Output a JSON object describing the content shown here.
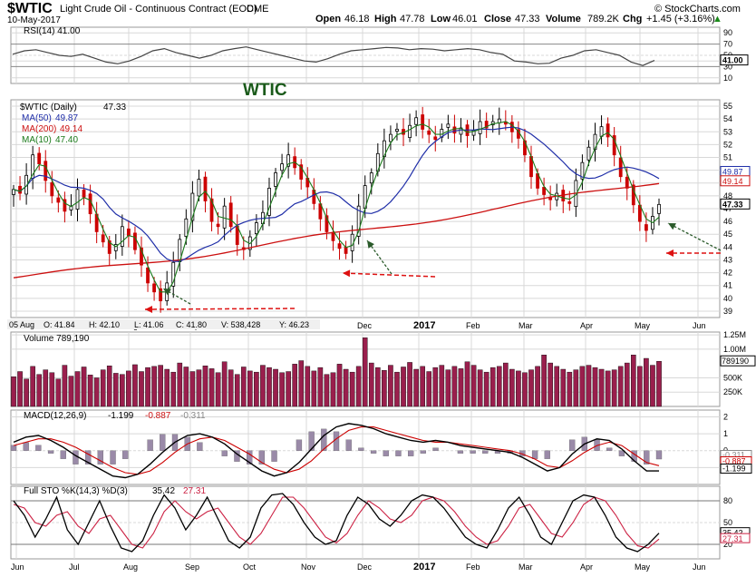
{
  "header": {
    "symbol": "$WTIC",
    "name": "Light Crude Oil - Continuous Contract (EOD)",
    "exchange": "CME",
    "site": "© StockCharts.com",
    "date": "10-May-2017",
    "open_label": "Open",
    "open": "46.18",
    "high_label": "High",
    "high": "47.78",
    "low_label": "Low",
    "low": "46.01",
    "close_label": "Close",
    "close": "47.33",
    "volume_label": "Volume",
    "volume": "789.2K",
    "chg_label": "Chg",
    "chg": "+1.45 (+3.16%)",
    "chg_arrow": "▲"
  },
  "annotation": "WTIC",
  "crosshair_readout": {
    "date": "05 Aug",
    "o": "O: 41.84",
    "h": "H: 42.10",
    "l": "L: 41.06",
    "c": "C: 41.80",
    "v": "V: 538,428",
    "y": "Y: 46.23"
  },
  "colors": {
    "up": "#000000",
    "down": "#cc0000",
    "ma50": "#1f2ea8",
    "ma200": "#cc1010",
    "ma10": "#1a7a1a",
    "vol": "#9a1f4d",
    "rsi": "#444444",
    "macd_hist": "#9a8aa8",
    "k_line": "#000000",
    "d_line": "#cc2244",
    "arrow_green": "#2a5a2a",
    "arrow_red": "#dd1111",
    "grid": "#d8d8d8",
    "price_box": "#ffffff"
  },
  "chart_data": [
    {
      "type": "line",
      "panel": "rsi",
      "legend": "RSI(14) 41.00",
      "series": [
        {
          "name": "RSI(14)",
          "values": [
            52,
            58,
            60,
            55,
            50,
            48,
            52,
            45,
            38,
            35,
            40,
            48,
            58,
            62,
            55,
            50,
            45,
            50,
            58,
            62,
            65,
            60,
            55,
            50,
            45,
            40,
            38,
            44,
            52,
            58,
            60,
            62,
            64,
            63,
            60,
            62,
            61,
            58,
            60,
            62,
            60,
            55,
            52,
            40,
            38,
            35,
            36,
            45,
            50,
            58,
            60,
            55,
            50,
            38,
            32,
            41
          ]
        }
      ],
      "yticks": [
        "90",
        "70",
        "50",
        "40",
        "30",
        "10"
      ],
      "ylim": [
        0,
        100
      ],
      "last_value": "41.00"
    },
    {
      "type": "candlestick",
      "panel": "price",
      "legend": [
        {
          "name": "$WTIC (Daily)",
          "value": "47.33"
        },
        {
          "name": "MA(50)",
          "value": "49.87"
        },
        {
          "name": "MA(200)",
          "value": "49.14"
        },
        {
          "name": "MA(10)",
          "value": "47.40"
        }
      ],
      "close": [
        48.5,
        48.2,
        49.6,
        51.2,
        50.5,
        49.2,
        48.0,
        47.5,
        46.8,
        47.2,
        48.5,
        47.9,
        46.6,
        45.2,
        44.4,
        43.5,
        44.2,
        45.6,
        44.9,
        43.8,
        42.6,
        41.2,
        40.5,
        39.8,
        41.2,
        42.8,
        44.6,
        46.2,
        48.2,
        49.3,
        47.6,
        46.0,
        45.6,
        47.2,
        45.6,
        44.2,
        43.8,
        44.8,
        45.9,
        46.7,
        48.6,
        49.8,
        50.5,
        51.2,
        50.2,
        49.3,
        48.7,
        47.4,
        46.2,
        45.2,
        44.5,
        43.9,
        43.5,
        45.0,
        47.2,
        48.8,
        49.8,
        51.3,
        52.3,
        52.8,
        53.2,
        52.8,
        53.5,
        54.1,
        53.2,
        52.8,
        52.4,
        53.2,
        53.6,
        52.9,
        53.3,
        52.7,
        53.1,
        53.8,
        53.3,
        53.8,
        54.0,
        53.6,
        53.0,
        52.5,
        51.2,
        49.5,
        48.6,
        48.1,
        47.7,
        48.2,
        47.6,
        47.4,
        49.2,
        50.6,
        51.8,
        52.8,
        53.4,
        52.6,
        51.2,
        49.5,
        48.6,
        47.3,
        46.0,
        45.3,
        46.4,
        47.33
      ],
      "ma50_end": 49.87,
      "ma200_end": 49.14,
      "ma10_end": 47.4,
      "yticks": [
        "55",
        "54",
        "53",
        "52",
        "51",
        "50",
        "49",
        "48",
        "47",
        "46",
        "45",
        "44",
        "43",
        "42",
        "41",
        "40",
        "39"
      ],
      "ylim": [
        38.5,
        55.5
      ],
      "last_labels": [
        "49.87",
        "49.14",
        "47.33"
      ]
    },
    {
      "type": "bar",
      "panel": "volume",
      "legend": "Volume 789,190",
      "values": [
        520,
        610,
        480,
        700,
        560,
        640,
        590,
        480,
        720,
        530,
        610,
        690,
        550,
        500,
        640,
        710,
        580,
        560,
        620,
        730,
        610,
        680,
        700,
        720,
        650,
        600,
        760,
        690,
        610,
        640,
        710,
        660,
        590,
        780,
        640,
        560,
        690,
        620,
        600,
        720,
        680,
        650,
        590,
        610,
        740,
        800,
        700,
        620,
        680,
        560,
        590,
        740,
        650,
        600,
        700,
        1200,
        760,
        680,
        630,
        720,
        600,
        690,
        770,
        650,
        700,
        610,
        680,
        720,
        640,
        700,
        660,
        780,
        720,
        640,
        600,
        680,
        700,
        760,
        650,
        620,
        590,
        640,
        700,
        900,
        760,
        700,
        650,
        600,
        640,
        700,
        720,
        680,
        650,
        620,
        640,
        700,
        760,
        900,
        700,
        840,
        720,
        789
      ],
      "yticks": [
        "1.25M",
        "1.00M",
        "789190",
        "500K",
        "250K"
      ]
    },
    {
      "type": "line",
      "panel": "macd",
      "legend_title": "MACD(12,26,9)",
      "legend_values": [
        "-1.199",
        "-0.887",
        "-0.311"
      ],
      "series": [
        {
          "name": "MACD",
          "values": [
            0.5,
            0.8,
            0.9,
            0.6,
            0.2,
            -0.3,
            -0.7,
            -1.1,
            -1.5,
            -1.6,
            -1.4,
            -0.8,
            -0.1,
            0.5,
            0.9,
            1.0,
            0.8,
            0.4,
            -0.2,
            -0.7,
            -1.2,
            -1.5,
            -1.3,
            -0.7,
            0.1,
            0.9,
            1.4,
            1.6,
            1.5,
            1.3,
            1.0,
            0.8,
            0.6,
            0.5,
            0.6,
            0.5,
            0.3,
            0.2,
            0.1,
            0.0,
            -0.1,
            -0.4,
            -0.8,
            -1.2,
            -1.0,
            -0.2,
            0.4,
            0.7,
            0.6,
            0.1,
            -0.6,
            -1.2,
            -1.199
          ]
        },
        {
          "name": "Signal",
          "values": [
            0.3,
            0.5,
            0.7,
            0.7,
            0.5,
            0.2,
            -0.2,
            -0.6,
            -1.0,
            -1.3,
            -1.4,
            -1.2,
            -0.7,
            -0.1,
            0.4,
            0.7,
            0.8,
            0.6,
            0.2,
            -0.2,
            -0.7,
            -1.1,
            -1.3,
            -1.1,
            -0.6,
            0.1,
            0.7,
            1.2,
            1.4,
            1.4,
            1.2,
            1.0,
            0.8,
            0.6,
            0.5,
            0.5,
            0.4,
            0.3,
            0.2,
            0.1,
            0.0,
            -0.2,
            -0.5,
            -0.9,
            -1.0,
            -0.6,
            -0.1,
            0.3,
            0.5,
            0.3,
            -0.2,
            -0.7,
            -0.887
          ]
        }
      ],
      "yticks": [
        "2",
        "1",
        "0",
        "-1"
      ],
      "right_labels": [
        "-0.311",
        "-0.887",
        "-1.199"
      ]
    },
    {
      "type": "line",
      "panel": "stochastic",
      "legend_title": "Full STO %K(14,3) %D(3)",
      "legend_values": [
        "35.42",
        "27.31"
      ],
      "series": [
        {
          "name": "%K",
          "values": [
            80,
            60,
            30,
            55,
            85,
            40,
            20,
            50,
            80,
            45,
            15,
            10,
            25,
            60,
            88,
            70,
            40,
            60,
            85,
            55,
            25,
            15,
            30,
            70,
            88,
            90,
            75,
            50,
            30,
            20,
            25,
            60,
            85,
            75,
            55,
            45,
            60,
            80,
            88,
            85,
            70,
            50,
            30,
            20,
            15,
            40,
            70,
            85,
            60,
            30,
            20,
            50,
            80,
            88,
            85,
            60,
            30,
            15,
            10,
            20,
            35.42
          ]
        },
        {
          "name": "%D",
          "values": [
            75,
            70,
            50,
            45,
            60,
            65,
            45,
            35,
            55,
            60,
            40,
            20,
            15,
            35,
            65,
            80,
            65,
            55,
            65,
            70,
            50,
            30,
            20,
            35,
            60,
            85,
            85,
            70,
            50,
            30,
            22,
            35,
            60,
            80,
            70,
            55,
            50,
            60,
            80,
            85,
            80,
            65,
            45,
            30,
            20,
            25,
            45,
            70,
            75,
            55,
            35,
            30,
            50,
            75,
            85,
            80,
            60,
            35,
            18,
            15,
            27.31
          ]
        }
      ],
      "yticks": [
        "80",
        "50",
        "20"
      ],
      "right_labels": [
        "35.42",
        "27.31"
      ]
    }
  ],
  "x_axis": {
    "labels": [
      "Jun",
      "Jul",
      "Aug",
      "Sep",
      "Oct",
      "Nov",
      "Dec",
      "2017",
      "Feb",
      "Mar",
      "Apr",
      "May",
      "Jun"
    ]
  }
}
